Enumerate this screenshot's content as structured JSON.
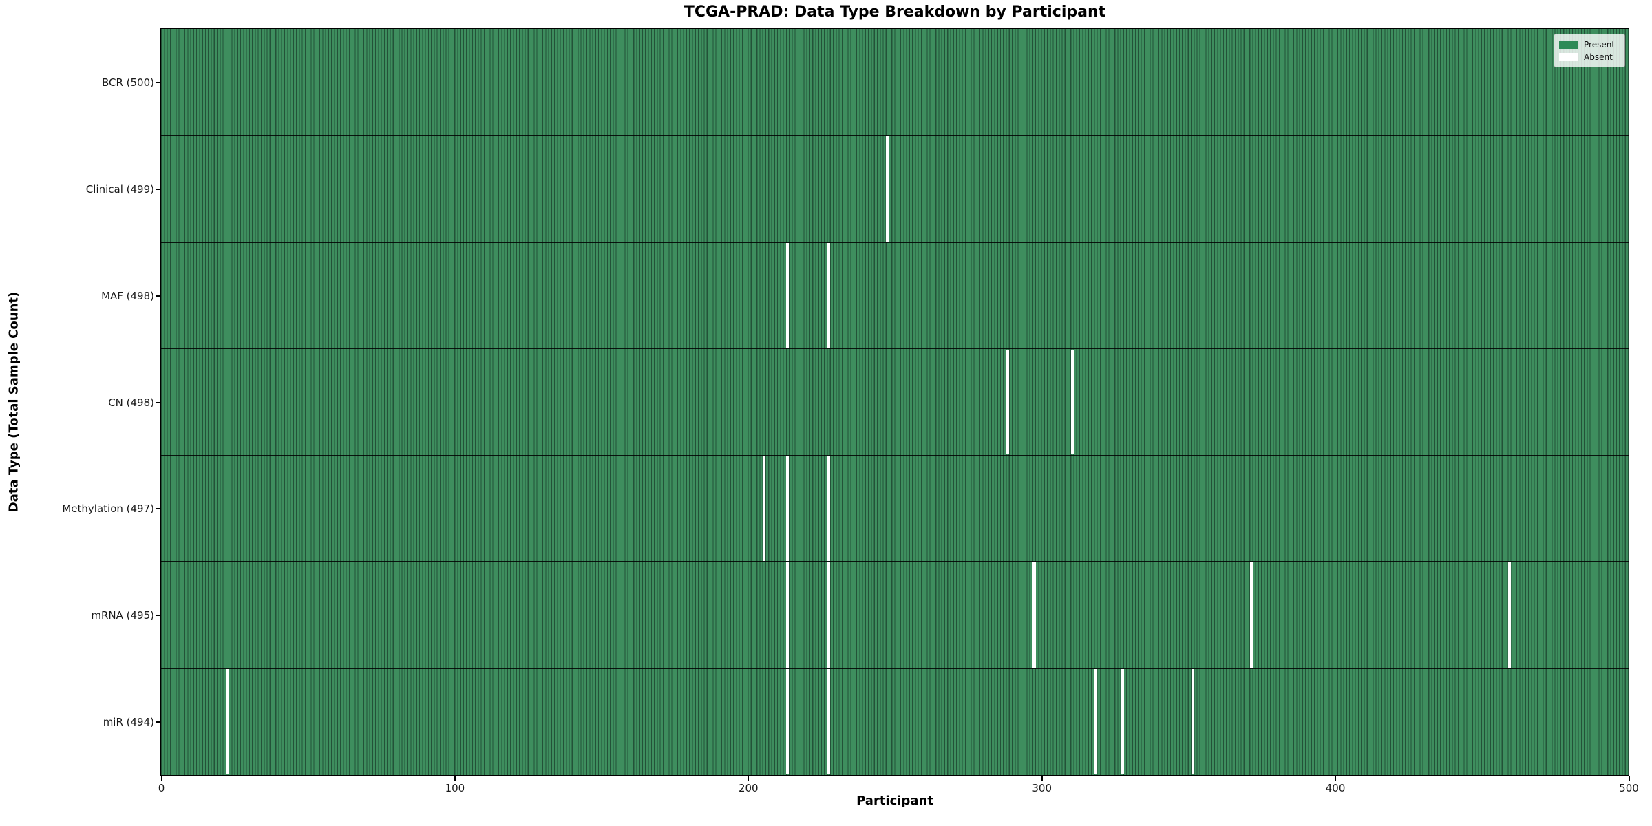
{
  "header": {
    "title": "TCGA-PRAD: Data Type Breakdown by Participant"
  },
  "colors": {
    "present_fill": "#2e8b57",
    "present_stripe_dark": "#235238",
    "absent_fill": "#ffffff",
    "axis_text": "#1a1a1a",
    "spine": "#000000",
    "legend_background": "#eef1ec"
  },
  "chart_data": {
    "type": "heatmap",
    "title": "TCGA-PRAD: Data Type Breakdown by Participant",
    "xlabel": "Participant",
    "ylabel": "Data Type (Total Sample Count)",
    "xlim": [
      0,
      500
    ],
    "n_participants": 500,
    "x_ticks": [
      0,
      100,
      200,
      300,
      400,
      500
    ],
    "grid": false,
    "legend_position": "upper right",
    "legend": [
      {
        "label": "Present",
        "color": "#2e8b57"
      },
      {
        "label": "Absent",
        "color": "#ffffff"
      }
    ],
    "rows": [
      {
        "label": "BCR (500)",
        "name": "BCR",
        "total": 500,
        "absent_participants": []
      },
      {
        "label": "Clinical (499)",
        "name": "Clinical",
        "total": 499,
        "absent_participants": [
          247
        ]
      },
      {
        "label": "MAF (498)",
        "name": "MAF",
        "total": 498,
        "absent_participants": [
          213,
          227
        ]
      },
      {
        "label": "CN (498)",
        "name": "CN",
        "total": 498,
        "absent_participants": [
          288,
          310
        ]
      },
      {
        "label": "Methylation (497)",
        "name": "Methylation",
        "total": 497,
        "absent_participants": [
          205,
          213,
          227
        ]
      },
      {
        "label": "mRNA (495)",
        "name": "mRNA",
        "total": 495,
        "absent_participants": [
          213,
          227,
          297,
          371,
          459
        ]
      },
      {
        "label": "miR (494)",
        "name": "miR",
        "total": 494,
        "absent_participants": [
          22,
          213,
          227,
          318,
          327,
          351
        ]
      }
    ]
  }
}
